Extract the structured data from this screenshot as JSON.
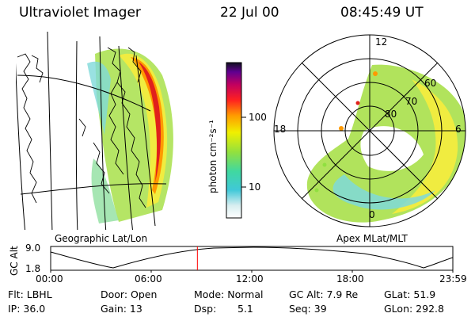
{
  "header": {
    "title": "Ultraviolet Imager",
    "date": "22 Jul 00",
    "time": "08:45:49 UT"
  },
  "colorbar": {
    "unit_label": "photon cm⁻²s⁻¹",
    "ticks": [
      "100",
      "10"
    ]
  },
  "left_panel": {
    "caption": "Geographic Lat/Lon"
  },
  "right_panel": {
    "caption": "Apex MLat/MLT",
    "lat_labels": [
      "80",
      "70",
      "60"
    ],
    "mlt_labels": [
      "12",
      "18",
      "6",
      "0"
    ]
  },
  "altitude_plot": {
    "ylabel": "GC Alt",
    "yticks": [
      "9.0",
      "1.8"
    ],
    "xticks": [
      "00:00",
      "06:00",
      "12:00",
      "18:00",
      "23:59"
    ],
    "marker_time": "08:45"
  },
  "info": {
    "flt": "Flt: LBHL",
    "ip": "IP: 36.0",
    "door": "Door: Open",
    "gain": "Gain: 13",
    "mode": "Mode: Normal",
    "dsp_label": "Dsp:",
    "dsp_value": "5.1",
    "gc_alt": "GC Alt: 7.9 Re",
    "seq": "Seq: 39",
    "glat": "GLat: 51.9",
    "glon": "GLon: 292.8"
  },
  "colors": {
    "marker": "#ff0000",
    "aurora_low": "#7fd9d9",
    "aurora_mid": "#a8e04a",
    "aurora_high": "#ff9900",
    "aurora_peak": "#e0201c"
  }
}
